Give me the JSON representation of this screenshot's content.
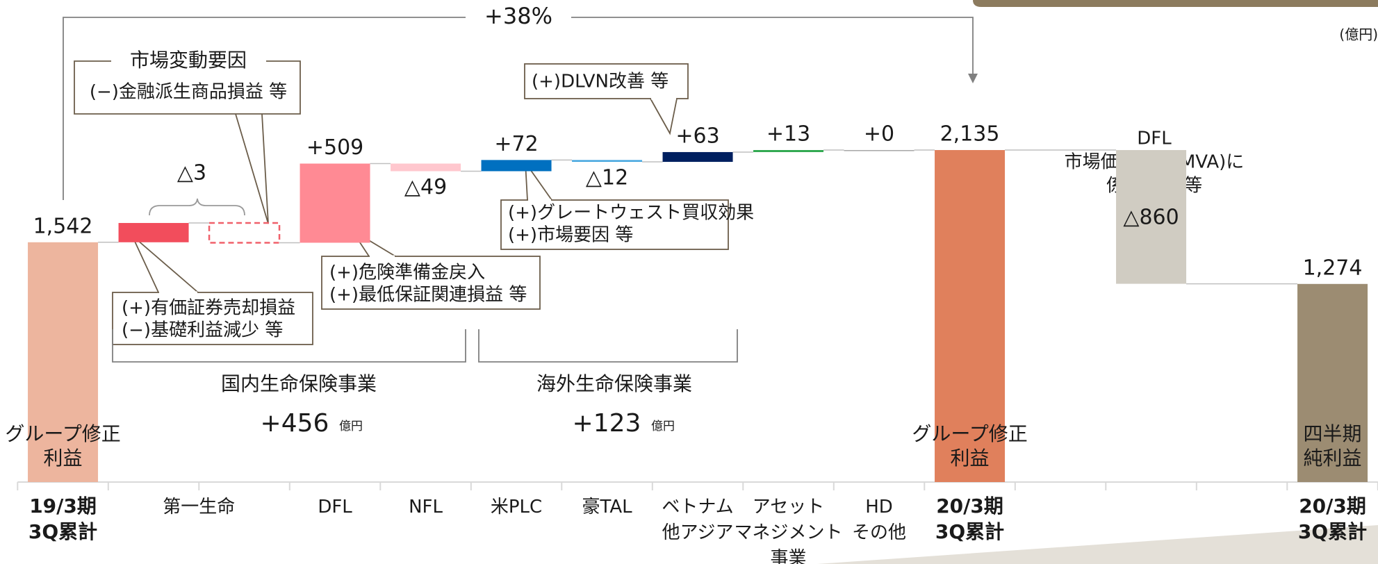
{
  "chart_data": {
    "type": "waterfall",
    "categories": [
      "19/3期\n3Q累計",
      "第一生命",
      null,
      "DFL",
      "NFL",
      "米PLC",
      "豪TAL",
      "ベトナム\n他アジア",
      "アセット\nマネジメント\n事業",
      "HD\nその他",
      "20/3期\n3Q累計",
      null,
      null,
      null,
      "20/3期\n3Q累計"
    ],
    "values": [
      1542,
      124,
      -127,
      509,
      -49,
      72,
      -12,
      63,
      13,
      0,
      2135,
      null,
      -860,
      null,
      1274
    ],
    "measure": [
      "total",
      "relative",
      "relative",
      "relative",
      "relative",
      "relative",
      "relative",
      "relative",
      "relative",
      "relative",
      "total",
      null,
      "relative",
      null,
      "total"
    ],
    "value_labels": [
      "1,542",
      null,
      null,
      "+509",
      "△49",
      "+72",
      "△12",
      "+63",
      "+13",
      "+0",
      "2,135",
      null,
      "△860",
      null,
      "1,274"
    ],
    "colors": [
      "#edb59e",
      "#f24d5c",
      "#f0606a",
      "#ff8a94",
      "#ffc7ce",
      "#0070c0",
      "#4ba9e0",
      "#002060",
      "#2ea84e",
      "#a6a6a6",
      "#e0805c",
      null,
      "#d0ccc2",
      null,
      "#9c8c72"
    ],
    "outline_only": [
      2
    ],
    "bar_texts": [
      "グループ修正\n利益",
      null,
      null,
      null,
      null,
      null,
      null,
      null,
      null,
      null,
      "グループ修正\n利益",
      null,
      null,
      null,
      "四半期\n純利益"
    ],
    "ylim": [
      0,
      3100
    ],
    "unit": "(億円)",
    "growth_label": "+38%",
    "group_label": "△3",
    "segments": [
      {
        "name": "国内生命保険事業",
        "value": "+456",
        "unit": "億円"
      },
      {
        "name": "海外生命保険事業",
        "value": "+123",
        "unit": "億円"
      }
    ],
    "callouts": {
      "market": {
        "title": "市場変動要因",
        "text": "(−)金融派生商品損益 等"
      },
      "securities": [
        "(+)有価証券売却損益",
        "(−)基礎利益減少 等"
      ],
      "dfl": [
        "(+)危険準備金戻入",
        "(+)最低保証関連損益 等"
      ],
      "plc": [
        "(+)グレートウェスト買収効果",
        "(+)市場要因 等"
      ],
      "dlvn": "(+)DLVN改善 等",
      "mva": [
        "DFL",
        "市場価格調整(MVA)に",
        "係る損益 等"
      ]
    }
  }
}
